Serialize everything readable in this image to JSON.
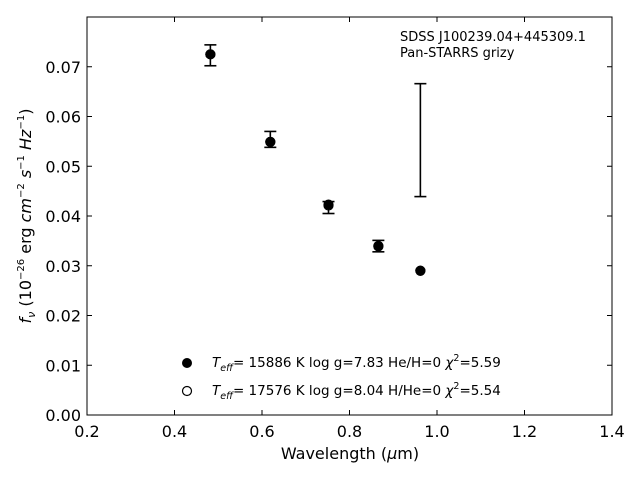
{
  "chart_data": {
    "type": "scatter",
    "xlabel": "Wavelength (μm)",
    "ylabel": "f_ν (10^-26 erg cm^-2 s^-1 Hz^-1)",
    "xlim": [
      0.2,
      1.4
    ],
    "ylim": [
      0.0,
      0.08
    ],
    "x_ticks": [
      0.2,
      0.4,
      0.6,
      0.8,
      1.0,
      1.2,
      1.4
    ],
    "x_tick_labels": [
      "0.2",
      "0.4",
      "0.6",
      "0.8",
      "1.0",
      "1.2",
      "1.4"
    ],
    "y_ticks": [
      0.0,
      0.01,
      0.02,
      0.03,
      0.04,
      0.05,
      0.06,
      0.07
    ],
    "y_tick_labels": [
      "0.00",
      "0.01",
      "0.02",
      "0.03",
      "0.04",
      "0.05",
      "0.06",
      "0.07"
    ],
    "grid": false,
    "annotation": [
      "SDSS J100239.04+445309.1",
      "Pan-STARRS grizy"
    ],
    "observed": {
      "x": [
        0.482,
        0.619,
        0.752,
        0.866,
        0.962
      ],
      "y": [
        0.0722,
        0.0552,
        0.0416,
        0.0339,
        0.0552
      ],
      "yerr_low": [
        0.0702,
        0.0538,
        0.0405,
        0.0328,
        0.0439
      ],
      "yerr_high": [
        0.0744,
        0.057,
        0.0429,
        0.0351,
        0.0666
      ]
    },
    "series": [
      {
        "marker": "filled",
        "x": [
          0.482,
          0.619,
          0.752,
          0.866,
          0.962
        ],
        "y": [
          0.0725,
          0.0549,
          0.0423,
          0.0339,
          0.029
        ]
      },
      {
        "marker": "open",
        "x": [
          0.482,
          0.619,
          0.752,
          0.866,
          0.962
        ],
        "y": [
          0.0725,
          0.0549,
          0.0421,
          0.034,
          0.029
        ]
      }
    ],
    "legend": {
      "placement": "lower-center",
      "entries": [
        {
          "marker": "filled",
          "teff_label": "T",
          "teff_sub": "eff",
          "text": "= 15886 K  log g=7.83  He/H=0  ",
          "chi_label": "χ",
          "chi_sup": "2",
          "chi_val": "=5.59"
        },
        {
          "marker": "open",
          "teff_label": "T",
          "teff_sub": "eff",
          "text": "= 17576 K  log g=8.04  H/He=0  ",
          "chi_label": "χ",
          "chi_sup": "2",
          "chi_val": "=5.54"
        }
      ]
    },
    "colors": {
      "marker": "#000000",
      "background": "#ffffff"
    }
  }
}
